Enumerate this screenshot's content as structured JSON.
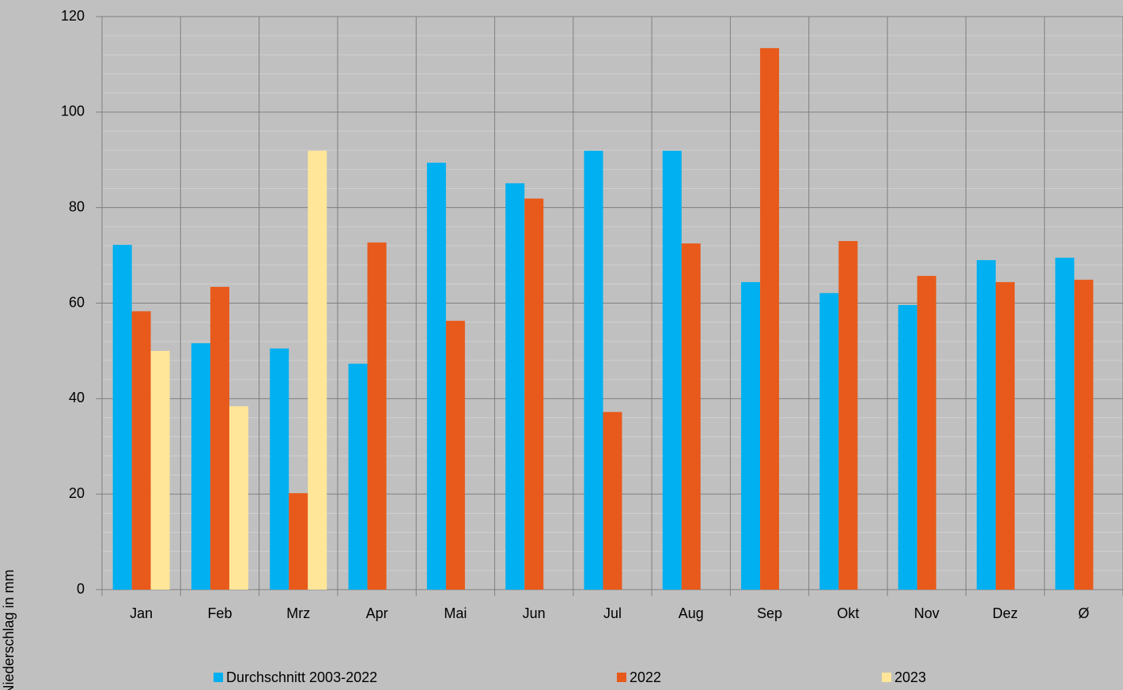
{
  "chart_data": {
    "type": "bar",
    "y_label": "Niederschlag in mm",
    "categories": [
      "Jan",
      "Feb",
      "Mrz",
      "Apr",
      "Mai",
      "Jun",
      "Jul",
      "Aug",
      "Sep",
      "Okt",
      "Nov",
      "Dez",
      "Ø"
    ],
    "series": [
      {
        "name": "Durchschnitt 2003-2022",
        "color": "#00b0f0",
        "values": [
          72.2,
          51.6,
          50.5,
          47.3,
          89.4,
          85.1,
          91.9,
          91.9,
          64.4,
          62.1,
          59.6,
          69.0,
          69.5
        ]
      },
      {
        "name": "2022",
        "color": "#e85a1b",
        "values": [
          58.3,
          63.4,
          20.2,
          72.7,
          56.3,
          81.9,
          37.2,
          72.5,
          113.4,
          73.0,
          65.7,
          64.4,
          64.9
        ]
      },
      {
        "name": "2023",
        "color": "#ffe699",
        "values": [
          50.0,
          38.4,
          91.9,
          null,
          null,
          null,
          null,
          null,
          null,
          null,
          null,
          null,
          null
        ]
      }
    ],
    "ylim": [
      0,
      120
    ],
    "yticks": [
      0,
      20,
      40,
      60,
      80,
      100,
      120
    ],
    "grid": true
  }
}
